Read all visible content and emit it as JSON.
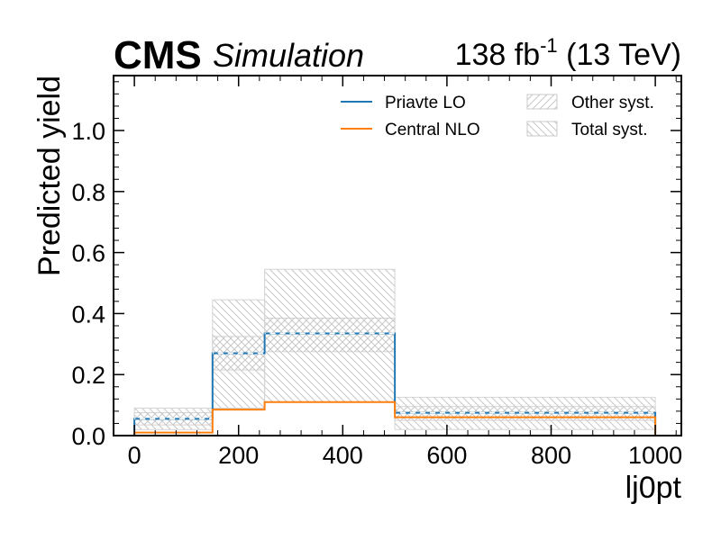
{
  "header": {
    "experiment": "CMS",
    "status": "Simulation",
    "lumi_text": "138 fb",
    "lumi_exp": "-1",
    "energy_text": " (13 TeV)"
  },
  "chart_data": {
    "type": "line",
    "xlabel": "lj0pt",
    "ylabel": "Predicted yield",
    "xlim": [
      -40,
      1050
    ],
    "ylim": [
      0,
      1.18
    ],
    "x_ticks": [
      0,
      200,
      400,
      600,
      800,
      1000
    ],
    "x_tick_labels": [
      "0",
      "200",
      "400",
      "600",
      "800",
      "1000"
    ],
    "y_ticks": [
      0.0,
      0.2,
      0.4,
      0.6,
      0.8,
      1.0
    ],
    "y_tick_labels": [
      "0.0",
      "0.2",
      "0.4",
      "0.6",
      "0.8",
      "1.0"
    ],
    "bin_edges": [
      0,
      150,
      250,
      500,
      1000
    ],
    "series": [
      {
        "name": "Priavte LO",
        "values": [
          0.055,
          0.27,
          0.335,
          0.075
        ],
        "color": "#1f77b4",
        "dashed_overlay": true
      },
      {
        "name": "Central NLO",
        "values": [
          0.01,
          0.085,
          0.11,
          0.06
        ],
        "color": "#ff7f0e"
      }
    ],
    "bands": [
      {
        "name": "Other syst.",
        "hatch": "forward",
        "low": [
          0.035,
          0.215,
          0.275,
          0.05
        ],
        "high": [
          0.075,
          0.325,
          0.385,
          0.095
        ]
      },
      {
        "name": "Total syst.",
        "hatch": "backward",
        "low": [
          0.02,
          0.09,
          0.11,
          0.02
        ],
        "high": [
          0.09,
          0.445,
          0.545,
          0.125
        ]
      }
    ],
    "legend_position": "top-right",
    "legend": [
      {
        "label": "Priavte LO",
        "kind": "line",
        "color": "#1f77b4"
      },
      {
        "label": "Central NLO",
        "kind": "line",
        "color": "#ff7f0e"
      },
      {
        "label": "Other syst.",
        "kind": "hatch-forward"
      },
      {
        "label": "Total syst.",
        "kind": "hatch-backward"
      }
    ]
  }
}
